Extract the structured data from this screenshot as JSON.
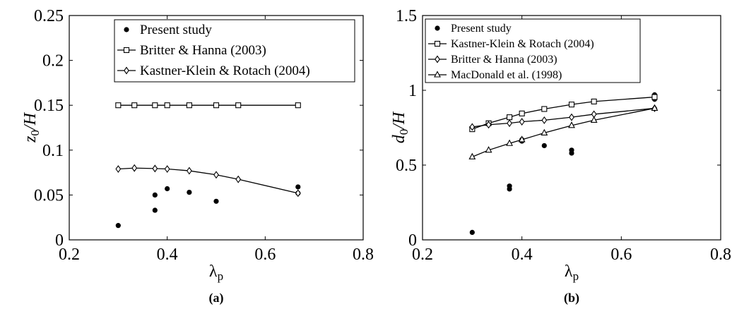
{
  "figure": {
    "panels": [
      {
        "caption": "(a)"
      },
      {
        "caption": "(b)"
      }
    ]
  },
  "chart_data": [
    {
      "type": "scatter",
      "panel": "(a)",
      "xlabel": "λp",
      "ylabel": "z0/H",
      "xlim": [
        0.2,
        0.8
      ],
      "ylim": [
        0,
        0.25
      ],
      "xticks": [
        0.2,
        0.4,
        0.6,
        0.8
      ],
      "yticks": [
        0,
        0.05,
        0.1,
        0.15,
        0.2,
        0.25
      ],
      "xtick_labels": [
        "0.2",
        "0.4",
        "0.6",
        "0.8"
      ],
      "ytick_labels": [
        "0",
        "0.05",
        "0.1",
        "0.15",
        "0.2",
        "0.25"
      ],
      "grid": false,
      "legend": "top-center",
      "series": [
        {
          "name": "Present study",
          "marker": "dot",
          "line": false,
          "x": [
            0.3,
            0.375,
            0.375,
            0.4,
            0.445,
            0.5,
            0.667,
            0.667
          ],
          "y": [
            0.016,
            0.033,
            0.05,
            0.057,
            0.053,
            0.043,
            0.052,
            0.059
          ]
        },
        {
          "name": "Britter & Hanna (2003)",
          "marker": "square",
          "line": true,
          "x": [
            0.3,
            0.333,
            0.375,
            0.4,
            0.445,
            0.5,
            0.545,
            0.667
          ],
          "y": [
            0.15,
            0.15,
            0.15,
            0.15,
            0.15,
            0.15,
            0.15,
            0.15
          ]
        },
        {
          "name": "Kastner-Klein & Rotach (2004)",
          "marker": "diamond",
          "line": true,
          "x": [
            0.3,
            0.333,
            0.375,
            0.4,
            0.445,
            0.5,
            0.545,
            0.667
          ],
          "y": [
            0.079,
            0.08,
            0.0795,
            0.079,
            0.077,
            0.0725,
            0.0675,
            0.052
          ]
        }
      ]
    },
    {
      "type": "scatter",
      "panel": "(b)",
      "xlabel": "λp",
      "ylabel": "d0/H",
      "xlim": [
        0.2,
        0.8
      ],
      "ylim": [
        0,
        1.5
      ],
      "xticks": [
        0.2,
        0.4,
        0.6,
        0.8
      ],
      "yticks": [
        0,
        0.5,
        1,
        1.5
      ],
      "xtick_labels": [
        "0.2",
        "0.4",
        "0.6",
        "0.8"
      ],
      "ytick_labels": [
        "0",
        "0.5",
        "1",
        "1.5"
      ],
      "grid": false,
      "legend": "top-left",
      "series": [
        {
          "name": "Present study",
          "marker": "dot",
          "line": false,
          "x": [
            0.3,
            0.375,
            0.375,
            0.4,
            0.4,
            0.445,
            0.5,
            0.5,
            0.667,
            0.667,
            0.667
          ],
          "y": [
            0.05,
            0.34,
            0.36,
            0.66,
            0.67,
            0.63,
            0.58,
            0.6,
            0.94,
            0.96,
            0.97
          ]
        },
        {
          "name": "Kastner-Klein & Rotach (2004)",
          "marker": "square",
          "line": true,
          "x": [
            0.3,
            0.333,
            0.375,
            0.4,
            0.445,
            0.5,
            0.545,
            0.667
          ],
          "y": [
            0.74,
            0.78,
            0.82,
            0.845,
            0.875,
            0.905,
            0.925,
            0.955
          ]
        },
        {
          "name": "Britter & Hanna (2003)",
          "marker": "diamond",
          "line": true,
          "x": [
            0.3,
            0.333,
            0.375,
            0.4,
            0.445,
            0.5,
            0.545,
            0.667
          ],
          "y": [
            0.755,
            0.77,
            0.78,
            0.79,
            0.8,
            0.82,
            0.84,
            0.88
          ]
        },
        {
          "name": "MacDonald et al. (1998)",
          "marker": "triangle",
          "line": true,
          "x": [
            0.3,
            0.333,
            0.375,
            0.4,
            0.445,
            0.5,
            0.545,
            0.667
          ],
          "y": [
            0.555,
            0.6,
            0.645,
            0.67,
            0.715,
            0.765,
            0.8,
            0.88
          ]
        }
      ]
    }
  ]
}
